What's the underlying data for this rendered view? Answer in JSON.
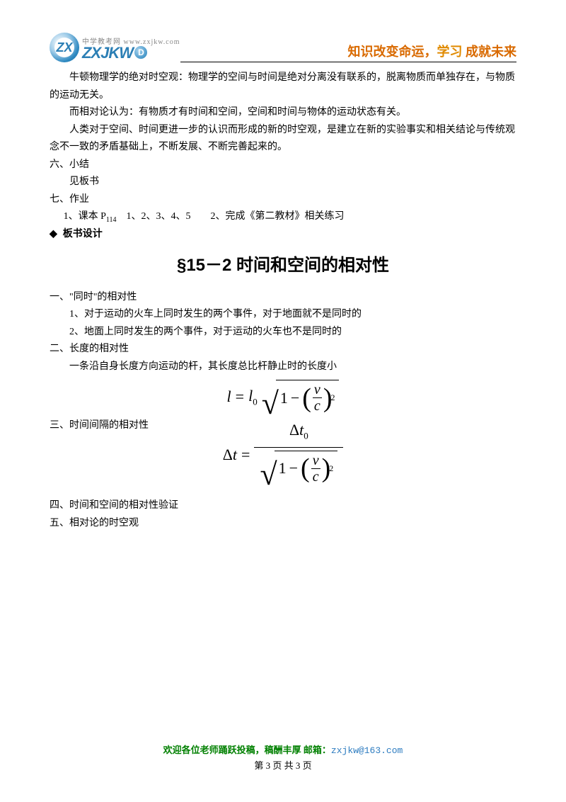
{
  "header": {
    "logo_cn": "中学教考网",
    "logo_url": "www.zxjkw.com",
    "logo_zx": "ZX",
    "logo_main": "ZXJKW",
    "logo_d": "D",
    "slogan_1": "知识改变命运，",
    "slogan_2": "学习",
    "slogan_3": " 成就未来"
  },
  "body": {
    "p1": "牛顿物理学的绝对时空观：物理学的空间与时间是绝对分离没有联系的，脱离物质而单独存在，与物质的运动无关。",
    "p2": "而相对论认为：有物质才有时间和空间，空间和时间与物体的运动状态有关。",
    "p3": "人类对于空间、时间更进一步的认识而形成的新的时空观，是建立在新的实验事实和相关结论与传统观念不一致的矛盾基础上，不断发展、不断完善起来的。",
    "s6": "六、小结",
    "s6_1": "见板书",
    "s7": "七、作业",
    "s7_1a": "1、课本 P",
    "s7_1sub": "114",
    "s7_1b": "　1、2、3、4、5　　2、完成《第二教材》相关练习",
    "diamond_label": "板书设计",
    "title": "§15－2  时间和空间的相对性",
    "o1": "一、\"同时\"的相对性",
    "o1_1": "1、对于运动的火车上同时发生的两个事件，对于地面就不是同时的",
    "o1_2": "2、地面上同时发生的两个事件，对于运动的火车也不是同时的",
    "o2": "二、长度的相对性",
    "o2_1": "一条沿自身长度方向运动的杆，其长度总比杆静止时的长度小",
    "o3": "三、时间间隔的相对性",
    "o4": "四、时间和空间的相对性验证",
    "o5": "五、相对论的时空观"
  },
  "formula": {
    "l": "l",
    "eq": "=",
    "l0": "l",
    "zero": "0",
    "one": "1",
    "minus": "−",
    "v": "v",
    "c": "c",
    "two": "2",
    "dt": "Δt",
    "dt0_a": "Δt",
    "dt0_b": "0"
  },
  "footer": {
    "line1_a": "欢迎各位老师踊跃投稿，稿酬丰厚  邮箱：",
    "line1_b": "zxjkw@163.com",
    "line2": "第 3 页 共 3 页"
  }
}
